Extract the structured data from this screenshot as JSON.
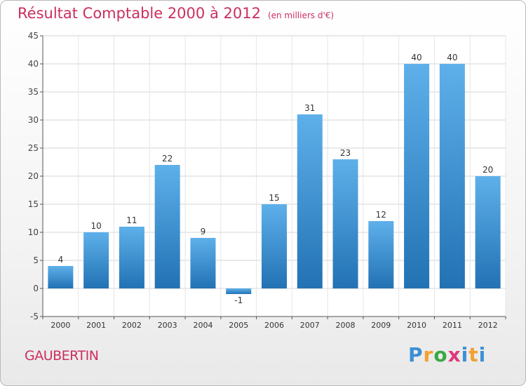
{
  "title": "Résultat Comptable 2000 à 2012",
  "unit_label": "(en milliers d'€)",
  "town": "GAUBERTIN",
  "logo": {
    "text": "Proxiti",
    "letters": [
      "P",
      "r",
      "o",
      "x",
      "i",
      "t",
      "i"
    ]
  },
  "colors": {
    "bar": "#3f96d8",
    "bar_dark": "#2272b4",
    "title": "#cc2f5e",
    "grid": "#d4d4d4"
  },
  "chart_data": {
    "type": "bar",
    "title": "Résultat Comptable 2000 à 2012",
    "subtitle": "(en milliers d'€)",
    "xlabel": "",
    "ylabel": "",
    "categories": [
      "2000",
      "2001",
      "2002",
      "2003",
      "2004",
      "2005",
      "2006",
      "2007",
      "2008",
      "2009",
      "2010",
      "2011",
      "2012"
    ],
    "values": [
      4,
      10,
      11,
      22,
      9,
      -1,
      15,
      31,
      23,
      12,
      40,
      40,
      20
    ],
    "ylim": [
      -5,
      45
    ],
    "yticks": [
      -5,
      0,
      5,
      10,
      15,
      20,
      25,
      30,
      35,
      40,
      45
    ],
    "grid": true,
    "legend": "none"
  }
}
